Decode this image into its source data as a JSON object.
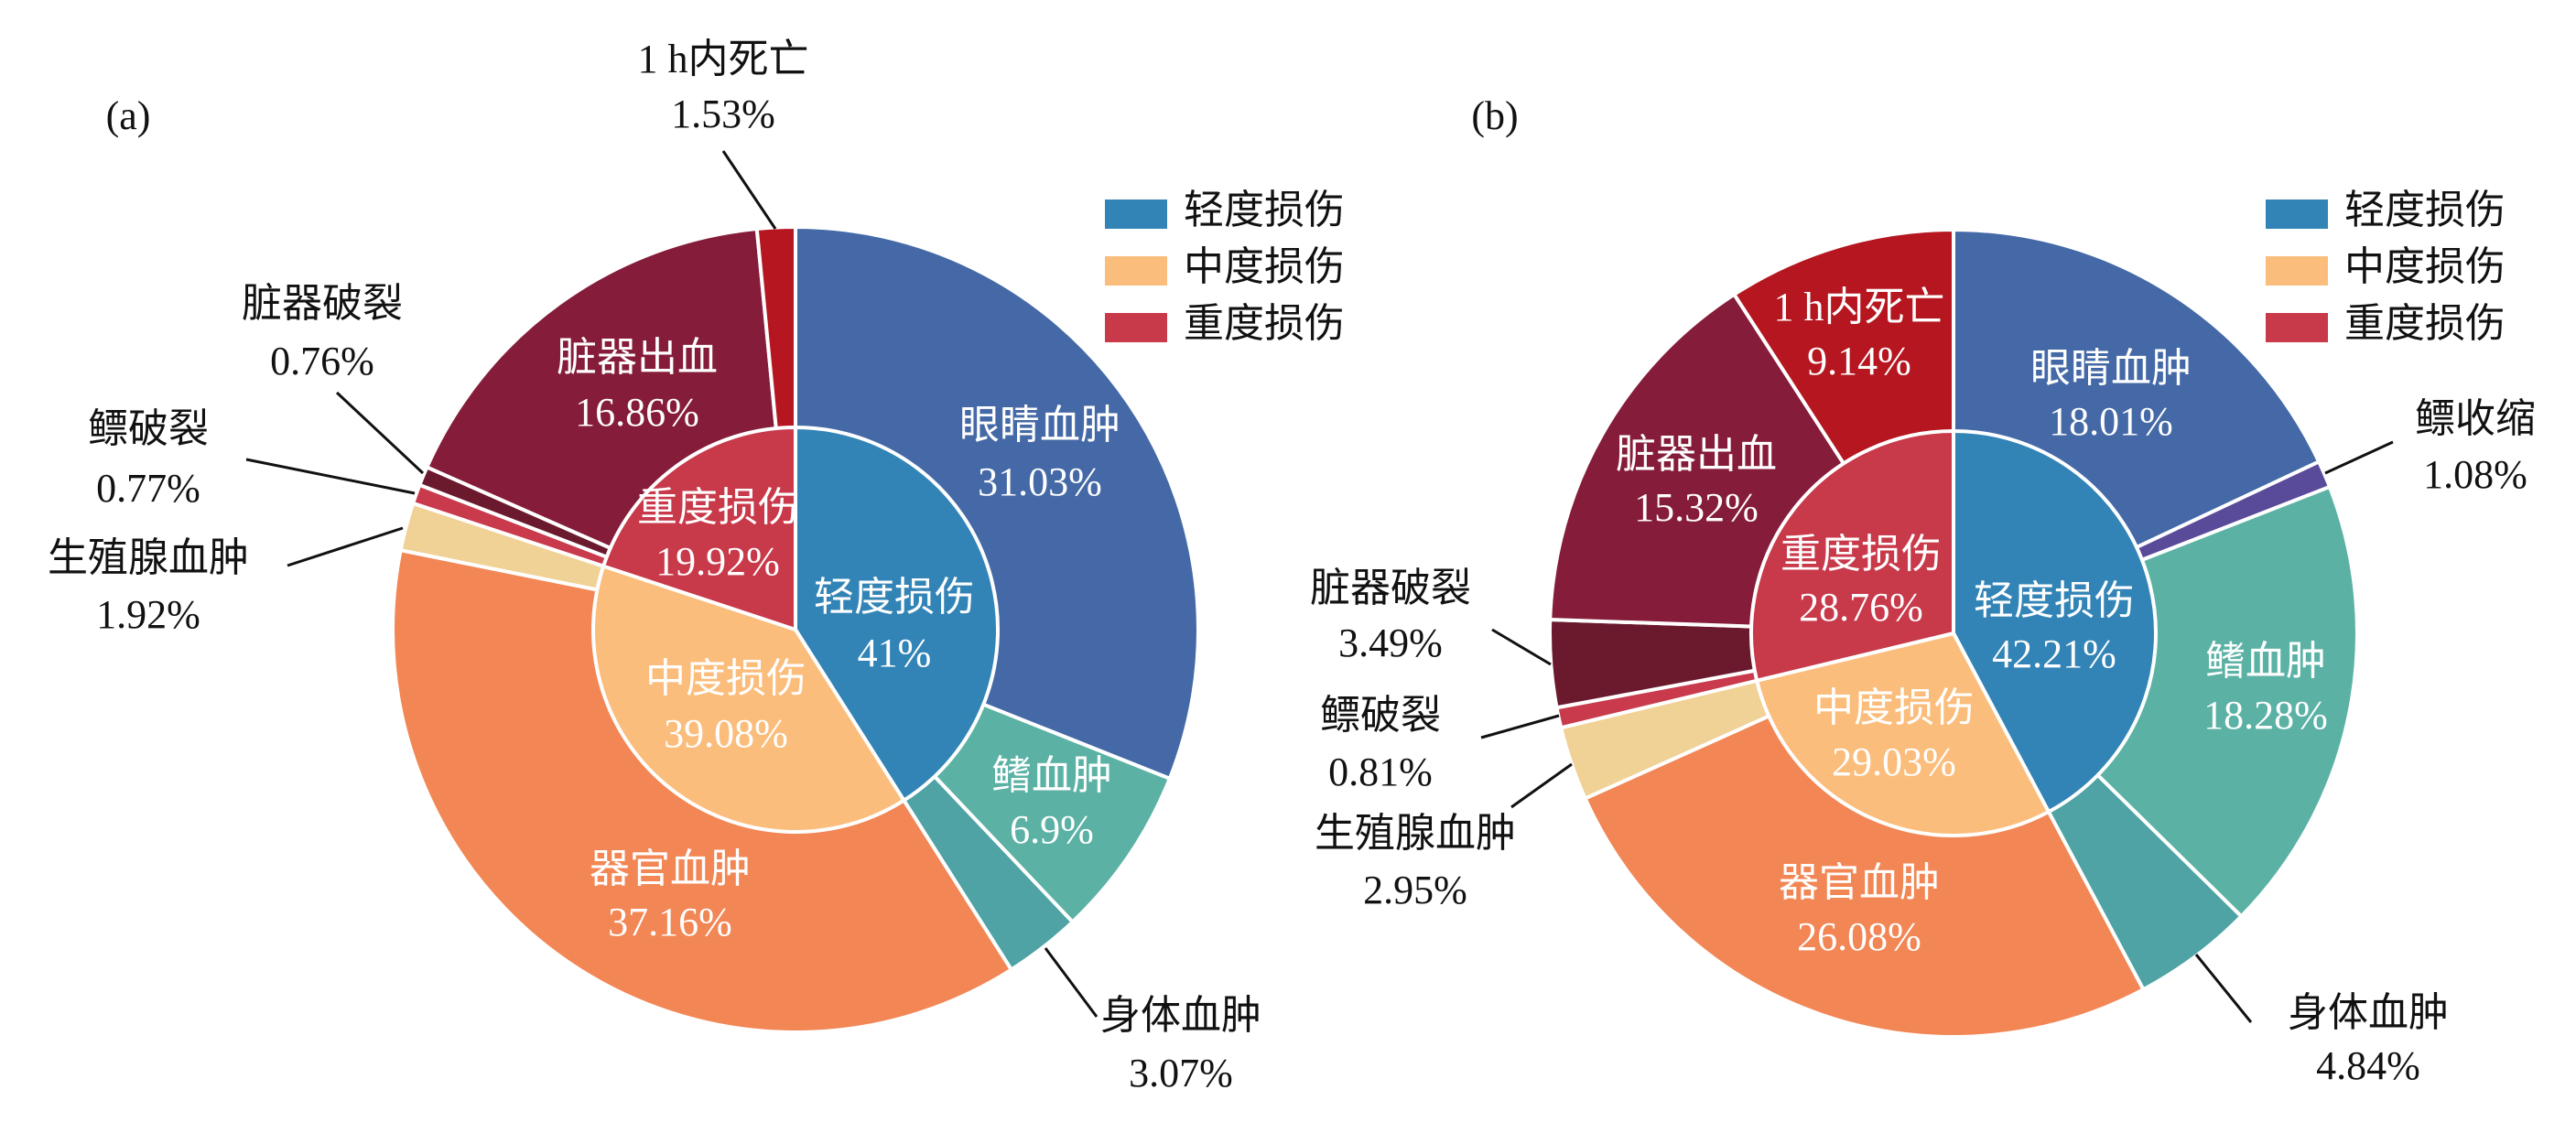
{
  "chart_data": [
    {
      "type": "pie",
      "subtype": "nested-donut",
      "panel_label": "(a)",
      "legend": {
        "placement": "top-right",
        "entries": [
          "轻度损伤",
          "中度损伤",
          "重度损伤"
        ]
      },
      "inner": [
        {
          "name": "轻度损伤",
          "value": 41,
          "label": "41%",
          "color": "#3384b6"
        },
        {
          "name": "中度损伤",
          "value": 39.08,
          "label": "39.08%",
          "color": "#fbbd7c"
        },
        {
          "name": "重度损伤",
          "value": 19.92,
          "label": "19.92%",
          "color": "#c8394a"
        }
      ],
      "outer": [
        {
          "name": "眼睛血肿",
          "value": 31.03,
          "label": "31.03%",
          "color": "#4469a6"
        },
        {
          "name": "鳍血肿",
          "value": 6.9,
          "label": "6.9%",
          "color": "#5bb2a4"
        },
        {
          "name": "身体血肿",
          "value": 3.07,
          "label": "3.07%",
          "color": "#4fa3a5"
        },
        {
          "name": "器官血肿",
          "value": 37.16,
          "label": "37.16%",
          "color": "#f28655"
        },
        {
          "name": "生殖腺血肿",
          "value": 1.92,
          "label": "1.92%",
          "color": "#f0d196"
        },
        {
          "name": "鳔破裂",
          "value": 0.77,
          "label": "0.77%",
          "color": "#c83a4c"
        },
        {
          "name": "脏器破裂",
          "value": 0.76,
          "label": "0.76%",
          "color": "#6b1a2e"
        },
        {
          "name": "脏器出血",
          "value": 16.86,
          "label": "16.86%",
          "color": "#851c39"
        },
        {
          "name": "1 h内死亡",
          "value": 1.53,
          "label": "1.53%",
          "color": "#b5161f"
        }
      ]
    },
    {
      "type": "pie",
      "subtype": "nested-donut",
      "panel_label": "(b)",
      "legend": {
        "placement": "top-right",
        "entries": [
          "轻度损伤",
          "中度损伤",
          "重度损伤"
        ]
      },
      "inner": [
        {
          "name": "轻度损伤",
          "value": 42.21,
          "label": "42.21%",
          "color": "#3384b6"
        },
        {
          "name": "中度损伤",
          "value": 29.03,
          "label": "29.03%",
          "color": "#fbbd7c"
        },
        {
          "name": "重度损伤",
          "value": 28.76,
          "label": "28.76%",
          "color": "#c8394a"
        }
      ],
      "outer": [
        {
          "name": "眼睛血肿",
          "value": 18.01,
          "label": "18.01%",
          "color": "#4469a6"
        },
        {
          "name": "鳔收缩",
          "value": 1.08,
          "label": "1.08%",
          "color": "#5a4a9a"
        },
        {
          "name": "鳍血肿",
          "value": 18.28,
          "label": "18.28%",
          "color": "#5bb2a4"
        },
        {
          "name": "身体血肿",
          "value": 4.84,
          "label": "4.84%",
          "color": "#4fa3a5"
        },
        {
          "name": "器官血肿",
          "value": 26.08,
          "label": "26.08%",
          "color": "#f28655"
        },
        {
          "name": "生殖腺血肿",
          "value": 2.95,
          "label": "2.95%",
          "color": "#f0d196"
        },
        {
          "name": "鳔破裂",
          "value": 0.81,
          "label": "0.81%",
          "color": "#c83a4c"
        },
        {
          "name": "脏器破裂",
          "value": 3.49,
          "label": "3.49%",
          "color": "#6b1a2e"
        },
        {
          "name": "脏器出血",
          "value": 15.32,
          "label": "15.32%",
          "color": "#851c39"
        },
        {
          "name": "1 h内死亡",
          "value": 9.14,
          "label": "9.14%",
          "color": "#b5161f"
        }
      ]
    }
  ]
}
